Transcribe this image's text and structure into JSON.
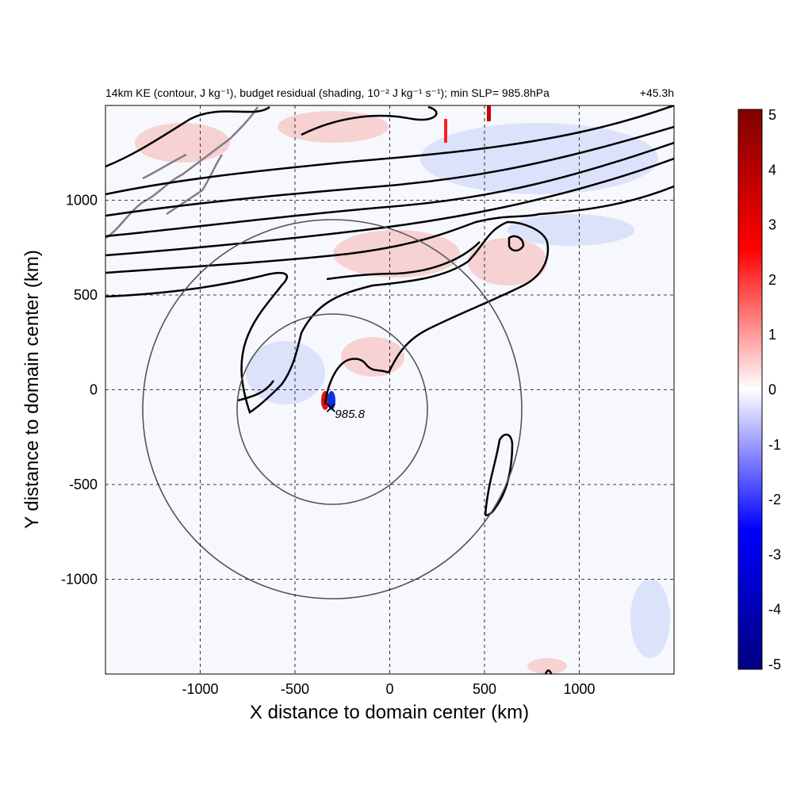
{
  "chart_data": {
    "type": "heatmap",
    "title": "14km KE (contour, J kg⁻¹), budget residual (shading, 10⁻² J kg⁻¹ s⁻¹); min SLP= 985.8hPa",
    "time_label": "+45.3h",
    "xlabel": "X distance to domain center (km)",
    "ylabel": "Y distance to domain center (km)",
    "xlim": [
      -1500,
      1500
    ],
    "ylim": [
      -1500,
      1500
    ],
    "x_ticks": [
      -1000,
      -500,
      0,
      500,
      1000
    ],
    "y_ticks": [
      -1000,
      -500,
      0,
      500,
      1000
    ],
    "x_tick_labels": [
      "-1000",
      "-500",
      "0",
      "500",
      "1000"
    ],
    "y_tick_labels": [
      "-1000",
      "-500",
      "0",
      "500",
      "1000"
    ],
    "grid": true,
    "colorbar": {
      "min": -5,
      "max": 5,
      "ticks": [
        5,
        4,
        3,
        2,
        1,
        0,
        -1,
        -2,
        -3,
        -4,
        -5
      ],
      "tick_labels": [
        "5",
        "4",
        "3",
        "2",
        "1",
        "0",
        "-1",
        "-2",
        "-3",
        "-4",
        "-5"
      ],
      "colormap": [
        "#00007f",
        "#0000ff",
        "#ffffff",
        "#ff0000",
        "#7f0000"
      ]
    },
    "storm_center": {
      "x": -310,
      "y": -95,
      "label": "985.8"
    },
    "range_circles": [
      {
        "center_x": -300,
        "center_y": -100,
        "radius_km": 500
      },
      {
        "center_x": -300,
        "center_y": -100,
        "radius_km": 1000
      }
    ],
    "colors": {
      "contour": "#000000",
      "coastline": "#808080",
      "circle": "#555555"
    }
  }
}
